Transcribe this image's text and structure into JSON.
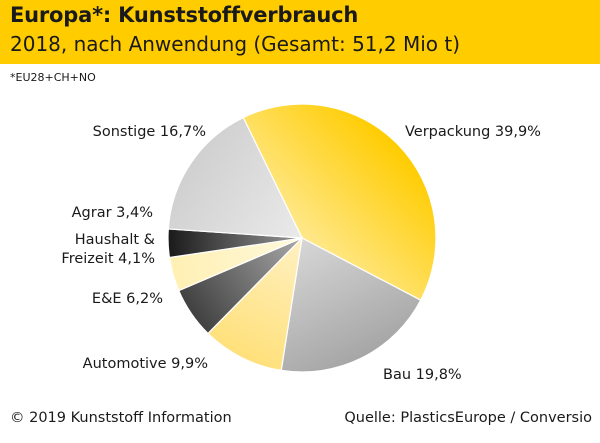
{
  "header": {
    "title": "Europa*: Kunststoffverbrauch",
    "subtitle": "2018, nach Anwendung (Gesamt: 51,2 Mio t)"
  },
  "footnote": "*EU28+CH+NO",
  "footer": {
    "copyright": "© 2019 Kunststoff Information",
    "source": "Quelle: PlasticsEurope / Conversio"
  },
  "colors": {
    "header_bg": "#FFCC00",
    "verpackung": "#FFCC00",
    "bau": "#A6A6A6",
    "automotive": "#FFE07A",
    "ee": "#404040",
    "haushalt": "#FFF0B3",
    "agrar": "#1A1A1A",
    "sonstige": "#D0D0D0"
  },
  "chart_data": {
    "type": "pie",
    "categories": [
      "Verpackung",
      "Bau",
      "Automotive",
      "E&E",
      "Haushalt & Freizeit",
      "Agrar",
      "Sonstige"
    ],
    "values": [
      39.9,
      19.8,
      9.9,
      6.2,
      4.1,
      3.4,
      16.7
    ],
    "labels": [
      [
        "Verpackung 39,9%"
      ],
      [
        "Bau 19,8%"
      ],
      [
        "Automotive 9,9%"
      ],
      [
        "E&E 6,2%"
      ],
      [
        "Haushalt &",
        "Freizeit 4,1%"
      ],
      [
        "Agrar 3,4%"
      ],
      [
        "Sonstige 16,7%"
      ]
    ]
  }
}
